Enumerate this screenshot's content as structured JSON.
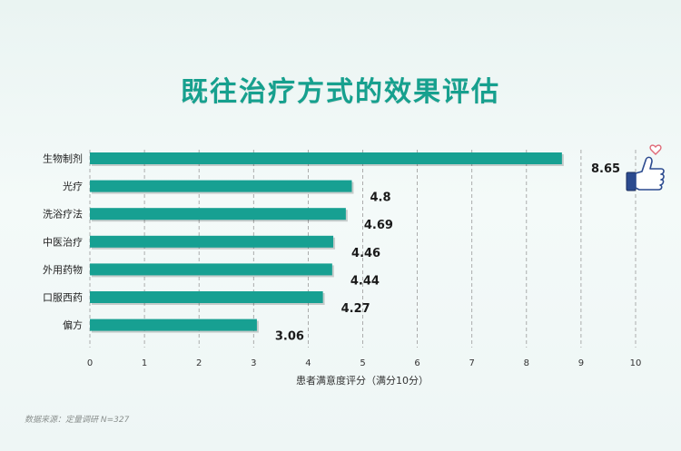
{
  "chart_data": {
    "type": "bar",
    "orientation": "horizontal",
    "title": "既往治疗方式的效果评估",
    "categories": [
      "生物制剂",
      "光疗",
      "洗浴疗法",
      "中医治疗",
      "外用药物",
      "口服西药",
      "偏方"
    ],
    "values": [
      8.65,
      4.8,
      4.69,
      4.46,
      4.44,
      4.27,
      3.06
    ],
    "value_labels": [
      "8.65",
      "4.8",
      "4.69",
      "4.46",
      "4.44",
      "4.27",
      "3.06"
    ],
    "xlabel": "患者满意度评分（满分10分）",
    "xlim": [
      0,
      10
    ],
    "xticks": [
      "0",
      "1",
      "2",
      "3",
      "4",
      "5",
      "6",
      "7",
      "8",
      "9",
      "10"
    ],
    "grid": "vertical dashed",
    "bar_color": "#17a092",
    "title_color": "#16a08e"
  },
  "source": "数据来源：定量调研 N=327",
  "decoration": {
    "icon": "thumbs-up-icon",
    "heart": "heart-icon"
  }
}
